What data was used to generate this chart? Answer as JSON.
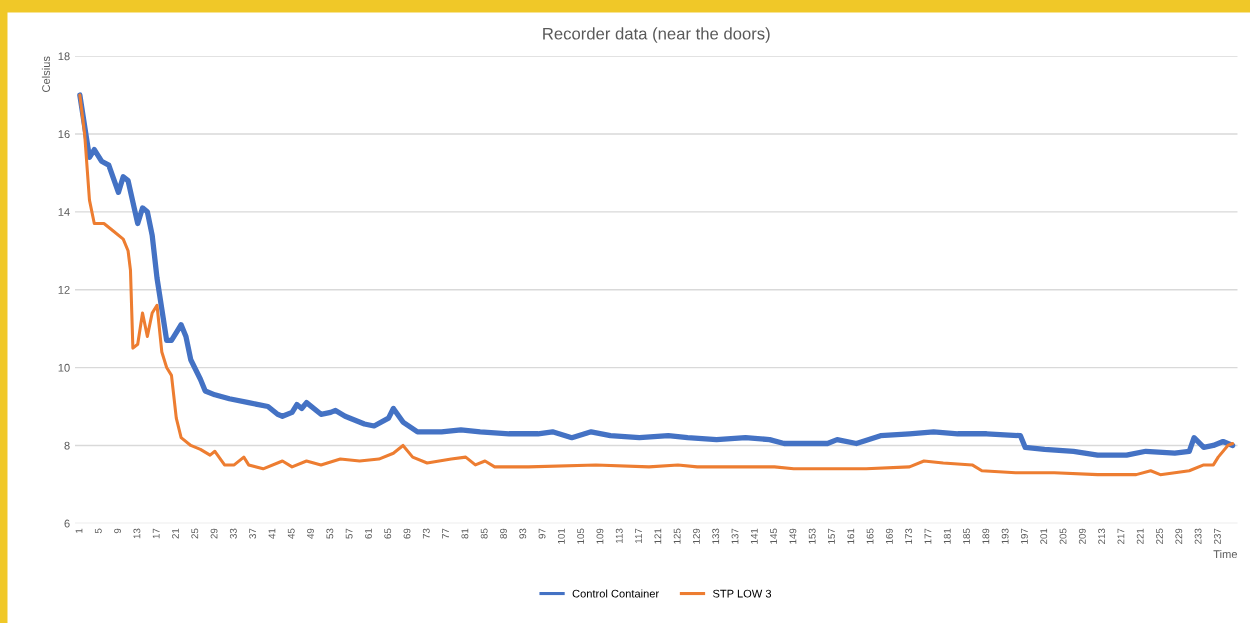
{
  "chart_data": {
    "type": "line",
    "title": "Recorder data (near the doors)",
    "xlabel": "Time",
    "ylabel": "Celsius",
    "xlim": [
      0,
      241
    ],
    "xticks": [
      1,
      5,
      9,
      13,
      17,
      21,
      25,
      29,
      33,
      37,
      41,
      45,
      49,
      53,
      57,
      61,
      65,
      69,
      73,
      77,
      81,
      85,
      89,
      93,
      97,
      101,
      105,
      109,
      113,
      117,
      121,
      125,
      129,
      133,
      137,
      141,
      145,
      149,
      153,
      157,
      161,
      165,
      169,
      173,
      177,
      181,
      185,
      189,
      193,
      197,
      201,
      205,
      209,
      213,
      217,
      221,
      225,
      229,
      233,
      237
    ],
    "ylim": [
      6,
      18
    ],
    "yticks": [
      6,
      8,
      10,
      12,
      14,
      16,
      18
    ],
    "grid": "y",
    "legend": "bottom",
    "marker": "none",
    "line_style": "solid",
    "series": [
      {
        "name": "Control Container",
        "color": "#4472c4",
        "x": [
          1,
          3,
          4,
          5.5,
          7,
          9,
          10,
          11,
          13,
          14,
          15,
          16,
          17,
          18,
          19,
          20,
          21,
          22,
          23,
          24,
          26,
          27,
          29,
          32,
          36,
          40,
          42,
          43,
          45,
          46,
          47,
          48,
          51,
          53,
          54,
          56,
          60,
          62,
          65,
          66,
          68,
          71,
          76,
          80,
          84,
          90,
          96,
          99,
          103,
          107,
          111,
          117,
          123,
          127,
          133,
          139,
          144,
          147,
          152,
          156,
          158,
          162,
          167,
          173,
          178,
          183,
          189,
          196,
          197,
          201,
          207,
          212,
          218,
          222,
          228,
          231,
          232,
          234,
          236,
          238,
          240
        ],
        "values": [
          17.0,
          15.4,
          15.6,
          15.3,
          15.2,
          14.5,
          14.9,
          14.8,
          13.7,
          14.1,
          14.0,
          13.4,
          12.3,
          11.5,
          10.7,
          10.7,
          10.9,
          11.1,
          10.8,
          10.2,
          9.7,
          9.4,
          9.3,
          9.2,
          9.1,
          9.0,
          8.8,
          8.75,
          8.85,
          9.05,
          8.95,
          9.1,
          8.8,
          8.85,
          8.9,
          8.75,
          8.55,
          8.5,
          8.7,
          8.95,
          8.6,
          8.35,
          8.35,
          8.4,
          8.35,
          8.3,
          8.3,
          8.35,
          8.2,
          8.35,
          8.25,
          8.2,
          8.25,
          8.2,
          8.15,
          8.2,
          8.15,
          8.05,
          8.05,
          8.05,
          8.15,
          8.05,
          8.25,
          8.3,
          8.35,
          8.3,
          8.3,
          8.25,
          7.95,
          7.9,
          7.85,
          7.75,
          7.75,
          7.85,
          7.8,
          7.85,
          8.2,
          7.95,
          8.0,
          8.1,
          8.0
        ]
      },
      {
        "name": "STP LOW 3",
        "color": "#ed7d31",
        "x": [
          1,
          2,
          3,
          4,
          6,
          8,
          10,
          11,
          11.5,
          12,
          13,
          14,
          15,
          16,
          17,
          18,
          19,
          20,
          21,
          22,
          24,
          26,
          28,
          29,
          31,
          33,
          35,
          36,
          39,
          43,
          45,
          48,
          51,
          55,
          59,
          63,
          66,
          68,
          70,
          73,
          78,
          81,
          83,
          85,
          87,
          94,
          108,
          119,
          125,
          129,
          140,
          145,
          149,
          156,
          164,
          173,
          176,
          180,
          186,
          188,
          195,
          203,
          212,
          220,
          223,
          225,
          228,
          231,
          234,
          236,
          237,
          239,
          240
        ],
        "values": [
          17.0,
          16.0,
          14.3,
          13.7,
          13.7,
          13.5,
          13.3,
          13.0,
          12.5,
          10.5,
          10.6,
          11.4,
          10.8,
          11.4,
          11.6,
          10.4,
          10.0,
          9.8,
          8.7,
          8.2,
          8.0,
          7.9,
          7.75,
          7.85,
          7.5,
          7.5,
          7.7,
          7.5,
          7.4,
          7.6,
          7.45,
          7.6,
          7.5,
          7.65,
          7.6,
          7.65,
          7.8,
          8.0,
          7.7,
          7.55,
          7.65,
          7.7,
          7.5,
          7.6,
          7.45,
          7.45,
          7.5,
          7.45,
          7.5,
          7.45,
          7.45,
          7.45,
          7.4,
          7.4,
          7.4,
          7.45,
          7.6,
          7.55,
          7.5,
          7.35,
          7.3,
          7.3,
          7.25,
          7.25,
          7.35,
          7.25,
          7.3,
          7.35,
          7.5,
          7.5,
          7.7,
          8.0,
          8.05
        ]
      }
    ]
  }
}
